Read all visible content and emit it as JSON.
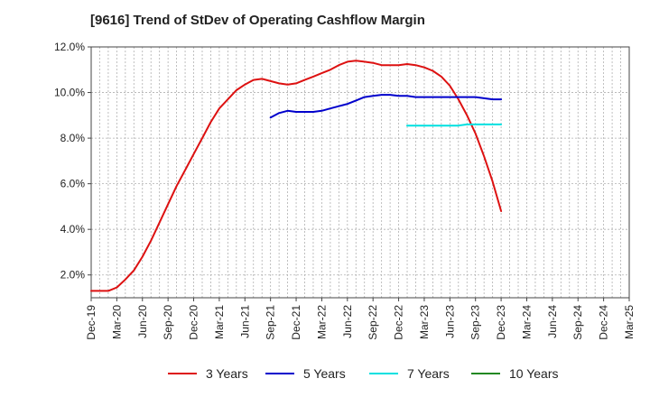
{
  "chart_data": {
    "type": "line",
    "title": "[9616]  Trend of StDev of Operating Cashflow Margin",
    "xlabel": "",
    "ylabel": "",
    "ylim": [
      1.0,
      12.0
    ],
    "y_ticks": [
      2.0,
      4.0,
      6.0,
      8.0,
      10.0,
      12.0
    ],
    "y_tick_labels": [
      "2.0%",
      "4.0%",
      "6.0%",
      "8.0%",
      "10.0%",
      "12.0%"
    ],
    "x_tick_labels": [
      "Dec-19",
      "Mar-20",
      "Jun-20",
      "Sep-20",
      "Dec-20",
      "Mar-21",
      "Jun-21",
      "Sep-21",
      "Dec-21",
      "Mar-22",
      "Jun-22",
      "Sep-22",
      "Dec-22",
      "Mar-23",
      "Jun-23",
      "Sep-23",
      "Dec-23",
      "Mar-24",
      "Jun-24",
      "Sep-24",
      "Dec-24",
      "Mar-25"
    ],
    "grid": true,
    "legend_position": "bottom",
    "series": [
      {
        "name": "3 Years",
        "color": "#dd1111",
        "points": [
          [
            0,
            1.3
          ],
          [
            1,
            1.3
          ],
          [
            2,
            1.3
          ],
          [
            3,
            1.45
          ],
          [
            4,
            1.8
          ],
          [
            5,
            2.2
          ],
          [
            6,
            2.8
          ],
          [
            7,
            3.5
          ],
          [
            8,
            4.3
          ],
          [
            9,
            5.1
          ],
          [
            10,
            5.9
          ],
          [
            11,
            6.6
          ],
          [
            12,
            7.3
          ],
          [
            13,
            8.0
          ],
          [
            14,
            8.7
          ],
          [
            15,
            9.3
          ],
          [
            16,
            9.7
          ],
          [
            17,
            10.1
          ],
          [
            18,
            10.35
          ],
          [
            19,
            10.55
          ],
          [
            20,
            10.6
          ],
          [
            21,
            10.5
          ],
          [
            22,
            10.4
          ],
          [
            23,
            10.35
          ],
          [
            24,
            10.4
          ],
          [
            25,
            10.55
          ],
          [
            26,
            10.7
          ],
          [
            27,
            10.85
          ],
          [
            28,
            11.0
          ],
          [
            29,
            11.2
          ],
          [
            30,
            11.35
          ],
          [
            31,
            11.4
          ],
          [
            32,
            11.35
          ],
          [
            33,
            11.3
          ],
          [
            34,
            11.2
          ],
          [
            35,
            11.2
          ],
          [
            36,
            11.2
          ],
          [
            37,
            11.25
          ],
          [
            38,
            11.2
          ],
          [
            39,
            11.1
          ],
          [
            40,
            10.95
          ],
          [
            41,
            10.7
          ],
          [
            42,
            10.3
          ],
          [
            43,
            9.7
          ],
          [
            44,
            9.0
          ],
          [
            45,
            8.2
          ],
          [
            46,
            7.2
          ],
          [
            47,
            6.1
          ],
          [
            48,
            4.8
          ]
        ]
      },
      {
        "name": "5 Years",
        "color": "#0000cc",
        "points": [
          [
            21,
            8.9
          ],
          [
            22,
            9.1
          ],
          [
            23,
            9.2
          ],
          [
            24,
            9.15
          ],
          [
            25,
            9.15
          ],
          [
            26,
            9.15
          ],
          [
            27,
            9.2
          ],
          [
            28,
            9.3
          ],
          [
            29,
            9.4
          ],
          [
            30,
            9.5
          ],
          [
            31,
            9.65
          ],
          [
            32,
            9.8
          ],
          [
            33,
            9.85
          ],
          [
            34,
            9.9
          ],
          [
            35,
            9.9
          ],
          [
            36,
            9.85
          ],
          [
            37,
            9.85
          ],
          [
            38,
            9.8
          ],
          [
            39,
            9.8
          ],
          [
            40,
            9.8
          ],
          [
            41,
            9.8
          ],
          [
            42,
            9.8
          ],
          [
            43,
            9.8
          ],
          [
            44,
            9.8
          ],
          [
            45,
            9.8
          ],
          [
            46,
            9.75
          ],
          [
            47,
            9.7
          ],
          [
            48,
            9.7
          ]
        ]
      },
      {
        "name": "7 Years",
        "color": "#00e0e0",
        "points": [
          [
            37,
            8.55
          ],
          [
            38,
            8.55
          ],
          [
            39,
            8.55
          ],
          [
            40,
            8.55
          ],
          [
            41,
            8.55
          ],
          [
            42,
            8.55
          ],
          [
            43,
            8.55
          ],
          [
            44,
            8.6
          ],
          [
            45,
            8.6
          ],
          [
            46,
            8.6
          ],
          [
            47,
            8.6
          ],
          [
            48,
            8.6
          ]
        ]
      },
      {
        "name": "10 Years",
        "color": "#228822",
        "points": []
      }
    ]
  }
}
